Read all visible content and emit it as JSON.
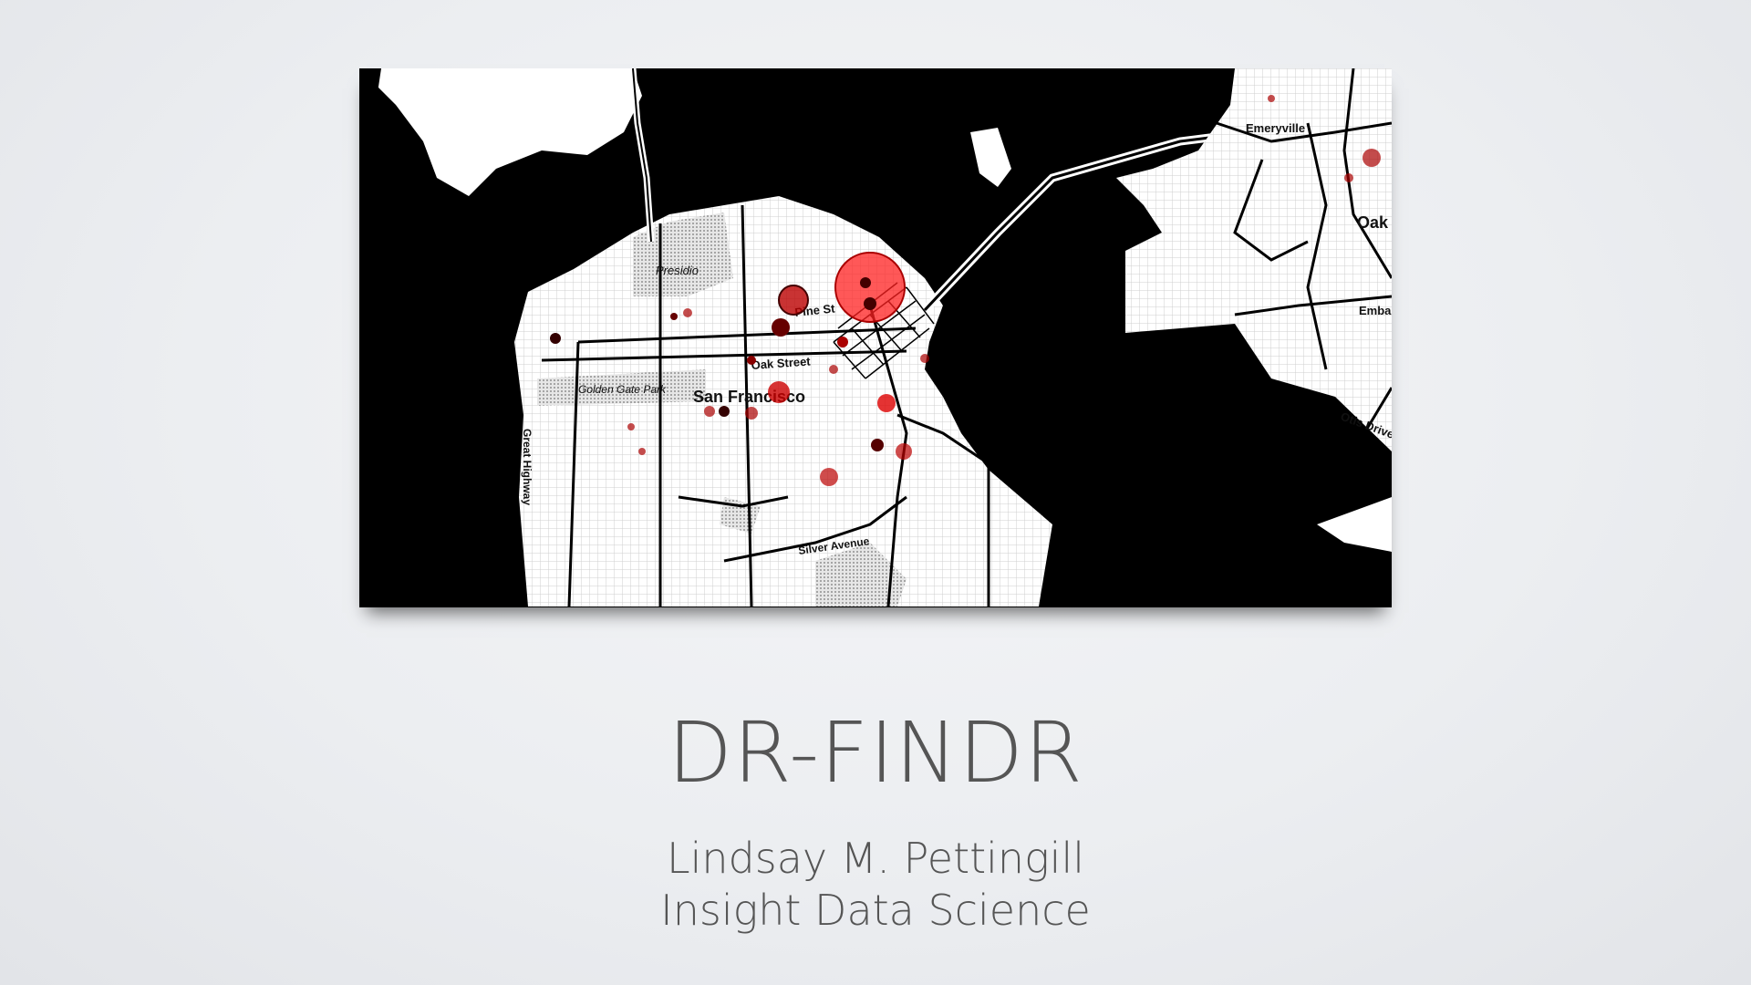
{
  "slide": {
    "title": "DR-FINDR",
    "author": "Lindsay M. Pettingill",
    "affiliation": "Insight Data Science"
  },
  "map": {
    "labels": {
      "presidio": "Presidio",
      "pine_street": "Pine St",
      "oak_street": "Oak Street",
      "golden_gate_park": "Golden Gate Park",
      "san_francisco": "San Francisco",
      "great_highway": "Great Highway",
      "silver_avenue": "Silver Avenue",
      "emeryville": "Emeryville",
      "oakland": "Oak",
      "embarcadero": "Emba",
      "otis_drive": "Otis Drive"
    },
    "colors": {
      "water": "#000000",
      "land": "#ffffff",
      "marker": "#ff1a1a"
    }
  }
}
